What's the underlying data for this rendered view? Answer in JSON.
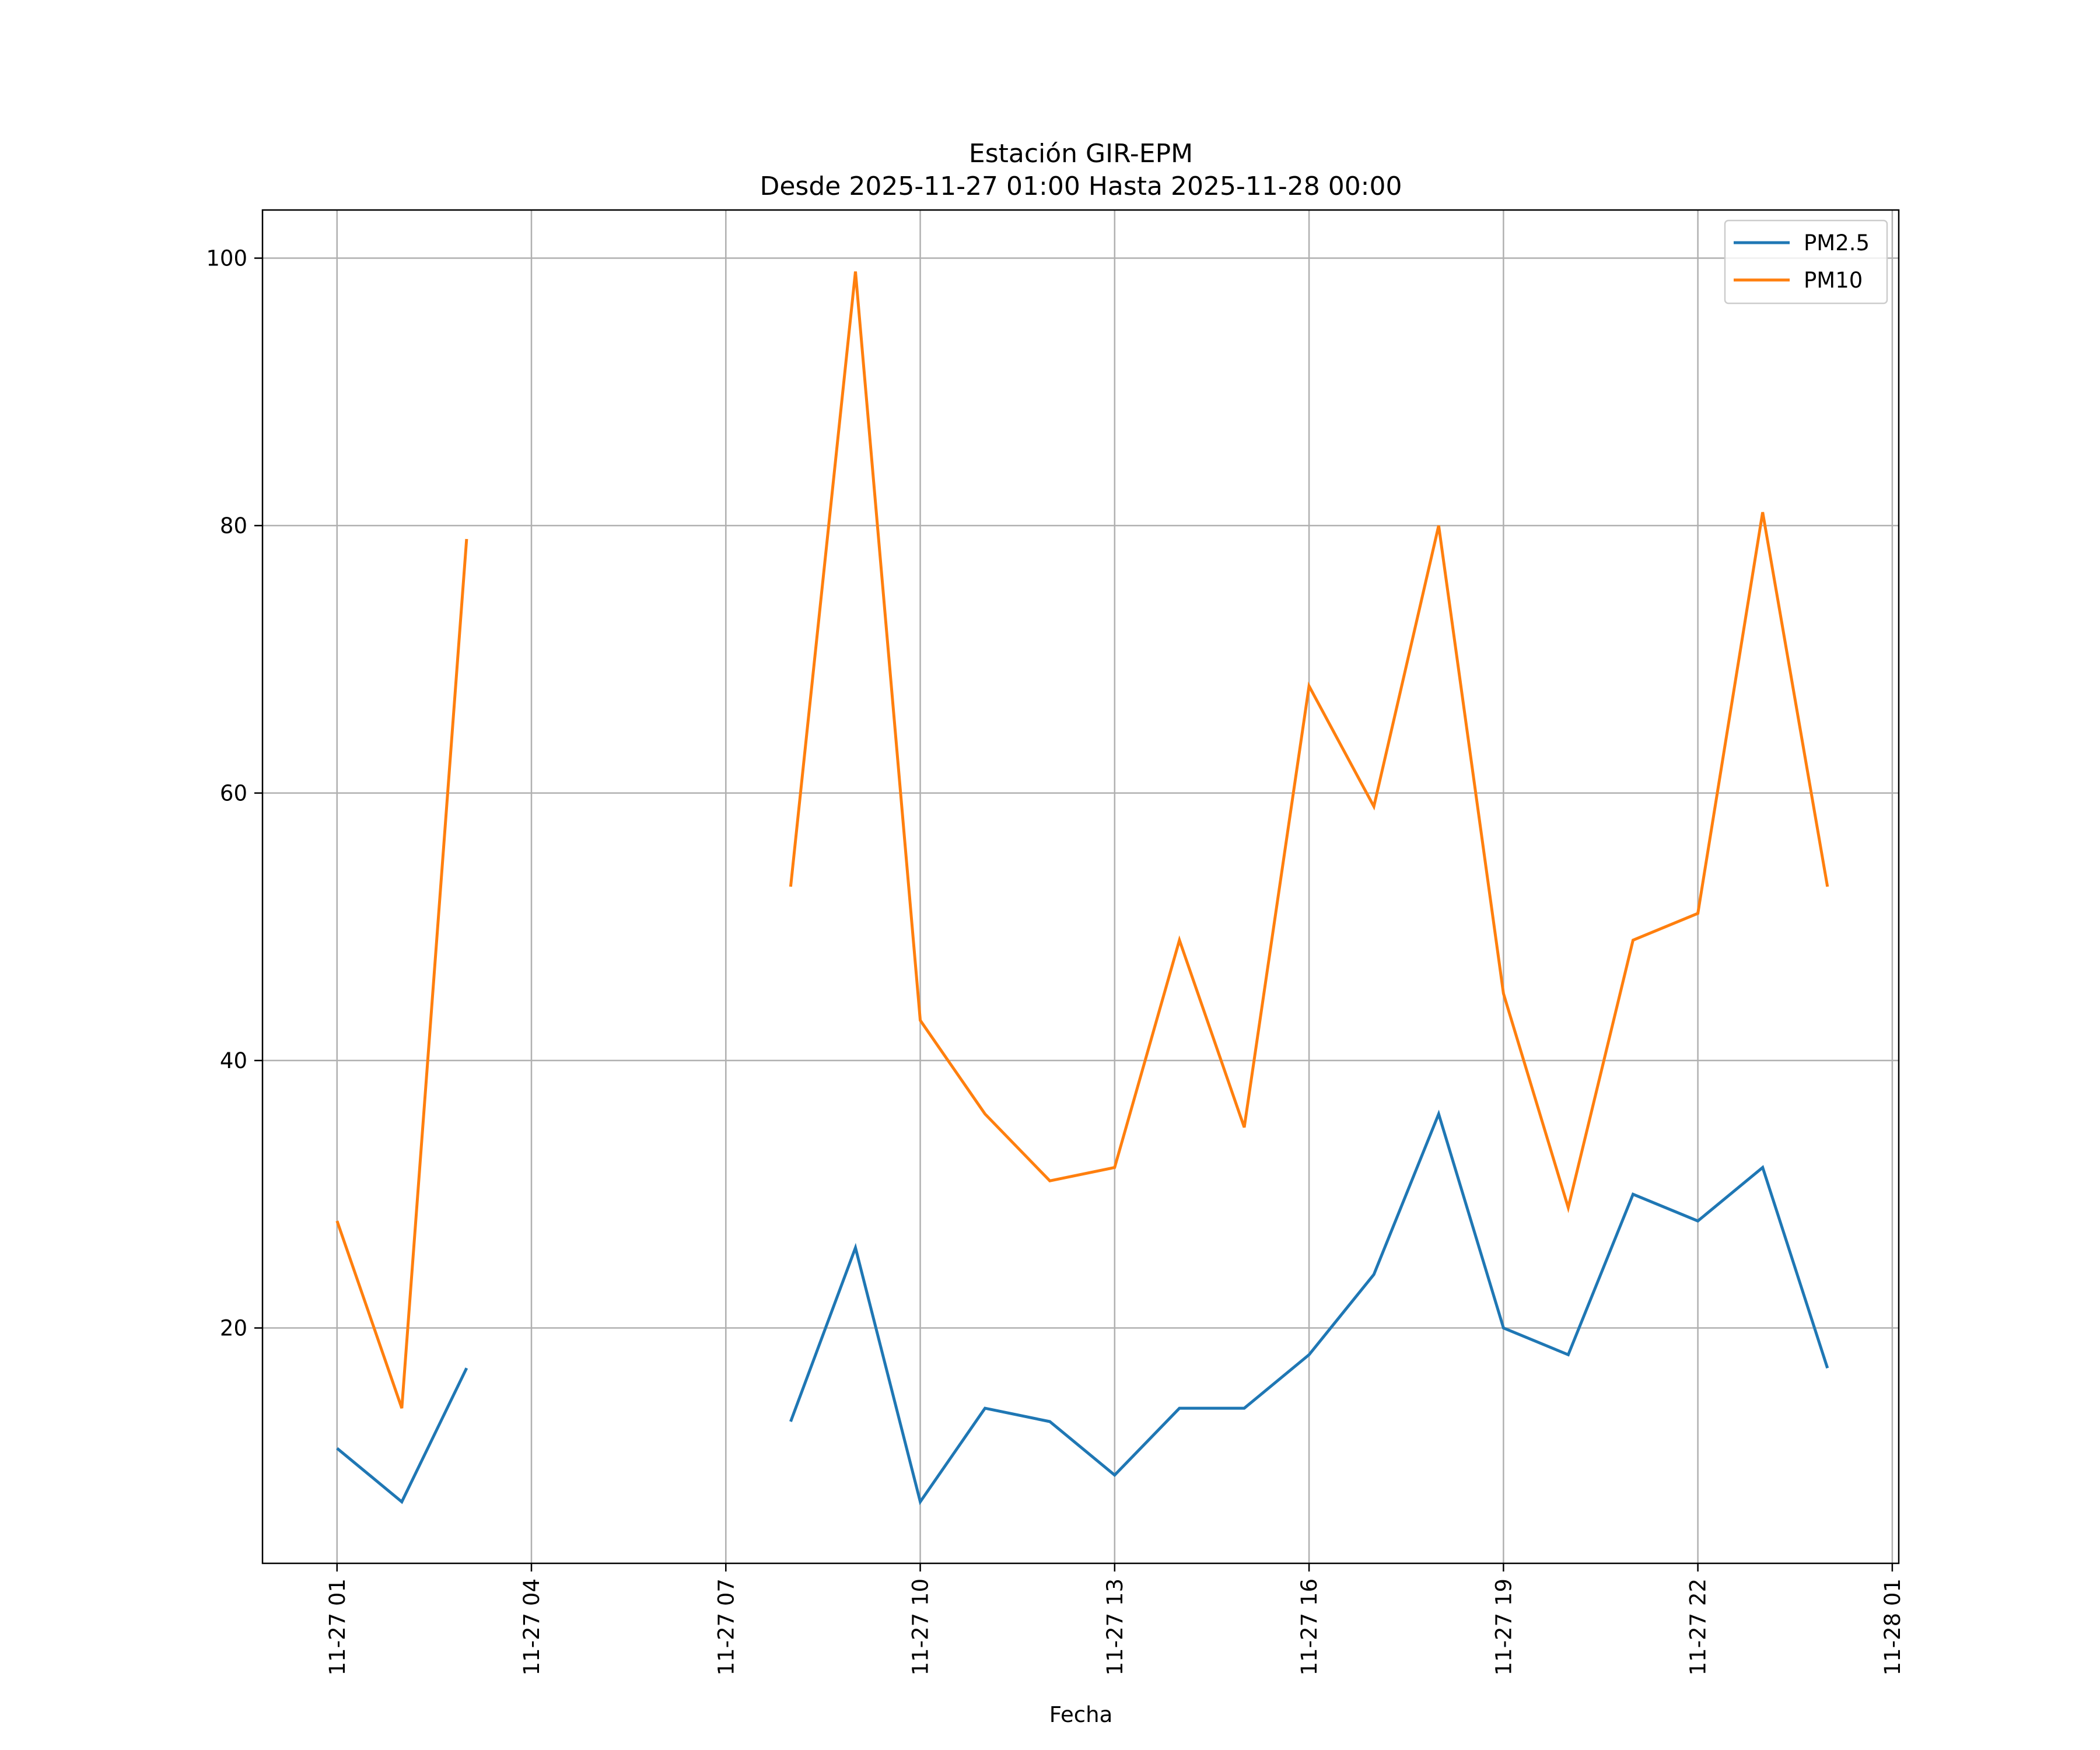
{
  "chart_data": {
    "type": "line",
    "title_line1": "Estación GIR-EPM",
    "title_line2": "Desde 2025-11-27 01:00 Hasta 2025-11-28 00:00",
    "xlabel": "Fecha",
    "ylabel": "",
    "x_hours": [
      1,
      2,
      3,
      4,
      5,
      6,
      7,
      8,
      9,
      10,
      11,
      12,
      13,
      14,
      15,
      16,
      17,
      18,
      19,
      20,
      21,
      22,
      23,
      24
    ],
    "xlim": [
      -0.15,
      25.1
    ],
    "ylim": [
      2.4,
      103.6
    ],
    "x_ticks": [
      {
        "hour": 1,
        "label": "11-27 01"
      },
      {
        "hour": 4,
        "label": "11-27 04"
      },
      {
        "hour": 7,
        "label": "11-27 07"
      },
      {
        "hour": 10,
        "label": "11-27 10"
      },
      {
        "hour": 13,
        "label": "11-27 13"
      },
      {
        "hour": 16,
        "label": "11-27 16"
      },
      {
        "hour": 19,
        "label": "11-27 19"
      },
      {
        "hour": 22,
        "label": "11-27 22"
      },
      {
        "hour": 25,
        "label": "11-28 01"
      }
    ],
    "y_ticks": [
      {
        "value": 20,
        "label": "20"
      },
      {
        "value": 40,
        "label": "40"
      },
      {
        "value": 60,
        "label": "60"
      },
      {
        "value": 80,
        "label": "80"
      },
      {
        "value": 100,
        "label": "100"
      }
    ],
    "grid": true,
    "legend_position": "top-right",
    "series": [
      {
        "name": "PM2.5",
        "color": "#1f77b4",
        "values": [
          11,
          7,
          17,
          null,
          null,
          null,
          null,
          13,
          26,
          7,
          14,
          13,
          9,
          14,
          14,
          18,
          24,
          36,
          20,
          18,
          30,
          28,
          32,
          17
        ]
      },
      {
        "name": "PM10",
        "color": "#ff7f0e",
        "values": [
          28,
          14,
          79,
          null,
          null,
          null,
          null,
          53,
          99,
          43,
          36,
          31,
          32,
          49,
          35,
          68,
          59,
          80,
          45,
          29,
          49,
          51,
          81,
          53
        ]
      }
    ]
  }
}
